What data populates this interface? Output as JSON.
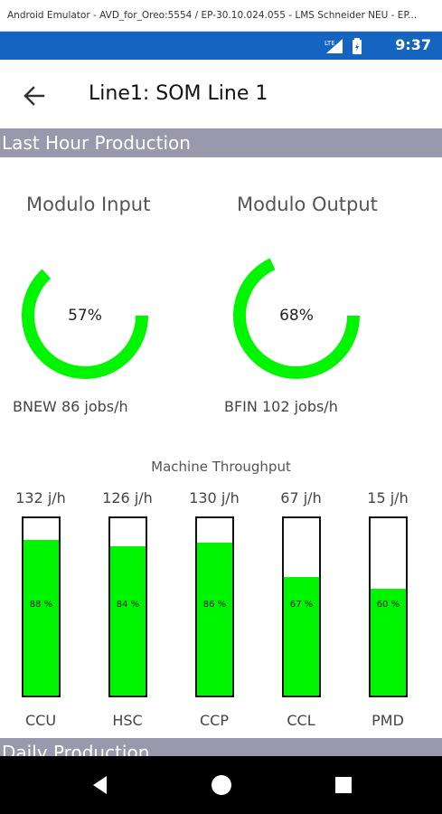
{
  "window": {
    "title": "Android Emulator - AVD_for_Oreo:5554 / EP-30.10.024.055 - LMS Schneider NEU - EP..."
  },
  "statusbar": {
    "network": "LTE",
    "time": "9:37"
  },
  "appbar": {
    "title": "Line1: SOM Line 1"
  },
  "sections": {
    "last_hour": "Last Hour Production",
    "daily": "Daily Production"
  },
  "gauges": [
    {
      "title": "Modulo Input",
      "percent_label": "57%",
      "value": 0.57,
      "subtitle": "BNEW 86 jobs/h"
    },
    {
      "title": "Modulo Output",
      "percent_label": "68%",
      "value": 0.68,
      "subtitle": "BFIN 102 jobs/h"
    }
  ],
  "machine_throughput": {
    "title": "Machine Throughput",
    "machines": [
      {
        "name": "CCU",
        "rate": "132 j/h",
        "percent_label": "88 %",
        "fill": 0.88
      },
      {
        "name": "HSC",
        "rate": "126 j/h",
        "percent_label": "84 %",
        "fill": 0.84
      },
      {
        "name": "CCP",
        "rate": "130 j/h",
        "percent_label": "86 %",
        "fill": 0.86
      },
      {
        "name": "CCL",
        "rate": "67 j/h",
        "percent_label": "67 %",
        "fill": 0.67
      },
      {
        "name": "PMD",
        "rate": "15 j/h",
        "percent_label": "60 %",
        "fill": 0.6
      }
    ]
  },
  "colors": {
    "gauge": "#00f500",
    "bar_fill": "#00f500",
    "statusbar": "#1565c0",
    "section_header": "#9a98ad"
  }
}
